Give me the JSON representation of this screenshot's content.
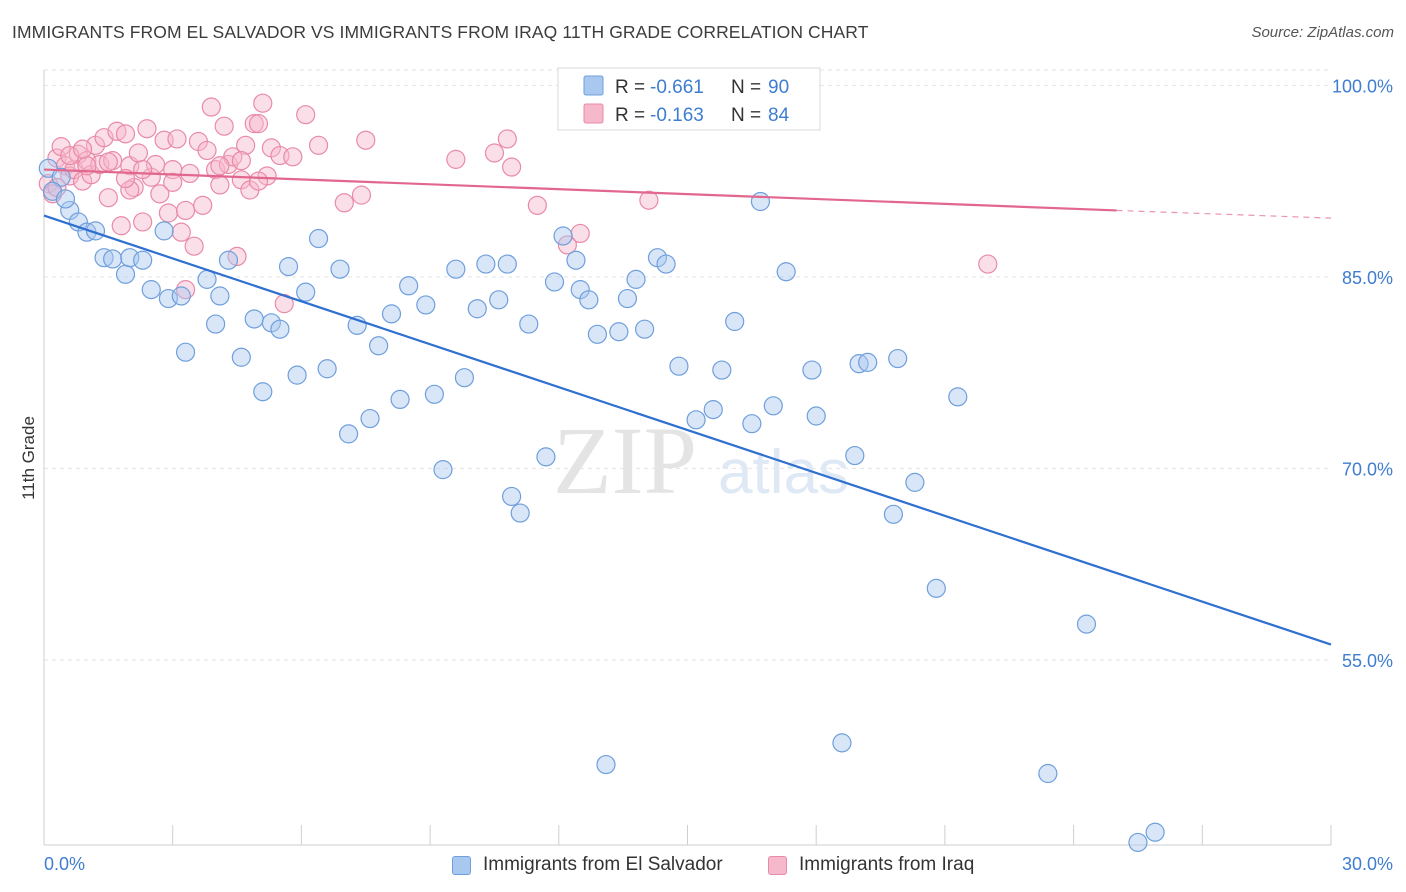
{
  "header": {
    "title": "IMMIGRANTS FROM EL SALVADOR VS IMMIGRANTS FROM IRAQ 11TH GRADE CORRELATION CHART",
    "source": "Source: ZipAtlas.com"
  },
  "watermark": {
    "zip": "ZIP",
    "atlas": "atlas"
  },
  "legend_box": {
    "rows": [
      {
        "r_label": "R =",
        "r_value": "-0.661",
        "n_label": "N =",
        "n_value": "90"
      },
      {
        "r_label": "R =",
        "r_value": "-0.163",
        "n_label": "N =",
        "n_value": "84"
      }
    ]
  },
  "bottom_legend": {
    "series1": "Immigrants from El Salvador",
    "series2": "Immigrants from Iraq"
  },
  "colors": {
    "blue_fill": "#a9c8f0",
    "blue_stroke": "#6f9fdc",
    "blue_line": "#2f6fd0",
    "pink_fill": "#f6b8cb",
    "pink_stroke": "#e98aa8",
    "pink_line": "#e2678f",
    "axis_text": "#3f7dd0",
    "grid": "#e3e3e3"
  },
  "chart_data": {
    "type": "scatter",
    "title": "IMMIGRANTS FROM EL SALVADOR VS IMMIGRANTS FROM IRAQ 11TH GRADE CORRELATION CHART",
    "xlabel": "",
    "ylabel": "11th Grade",
    "xlim": [
      0,
      30
    ],
    "ylim": [
      40.5,
      101.2
    ],
    "x_tick_labels": [
      "0.0%",
      "30.0%"
    ],
    "y_ticks": [
      55,
      70,
      85,
      100
    ],
    "y_tick_labels": [
      "55.0%",
      "70.0%",
      "85.0%",
      "100.0%"
    ],
    "grid": true,
    "series": [
      {
        "name": "Immigrants from El Salvador",
        "color": "#a9c8f0",
        "r": -0.661,
        "n": 90,
        "trendline": {
          "x": [
            0,
            30
          ],
          "y": [
            89.8,
            56.2
          ]
        },
        "points": [
          [
            0.1,
            93.5
          ],
          [
            0.4,
            92.8
          ],
          [
            0.6,
            90.2
          ],
          [
            0.8,
            89.3
          ],
          [
            1.0,
            88.5
          ],
          [
            1.2,
            88.6
          ],
          [
            1.4,
            86.5
          ],
          [
            1.6,
            86.4
          ],
          [
            1.9,
            85.2
          ],
          [
            2.0,
            86.5
          ],
          [
            2.3,
            86.3
          ],
          [
            2.5,
            84.0
          ],
          [
            2.8,
            88.6
          ],
          [
            2.9,
            83.3
          ],
          [
            3.2,
            83.5
          ],
          [
            3.3,
            79.1
          ],
          [
            3.8,
            84.8
          ],
          [
            4.0,
            81.3
          ],
          [
            4.1,
            83.5
          ],
          [
            4.3,
            86.3
          ],
          [
            4.6,
            78.7
          ],
          [
            4.9,
            81.7
          ],
          [
            5.1,
            76.0
          ],
          [
            5.3,
            81.4
          ],
          [
            5.5,
            80.9
          ],
          [
            5.7,
            85.8
          ],
          [
            5.9,
            77.3
          ],
          [
            6.1,
            83.8
          ],
          [
            6.4,
            88.0
          ],
          [
            6.6,
            77.8
          ],
          [
            6.9,
            85.6
          ],
          [
            7.1,
            72.7
          ],
          [
            7.3,
            81.2
          ],
          [
            7.6,
            73.9
          ],
          [
            7.8,
            79.6
          ],
          [
            8.1,
            82.1
          ],
          [
            8.3,
            75.4
          ],
          [
            8.5,
            84.3
          ],
          [
            8.9,
            82.8
          ],
          [
            9.1,
            75.8
          ],
          [
            9.3,
            69.9
          ],
          [
            9.6,
            85.6
          ],
          [
            9.8,
            77.1
          ],
          [
            10.1,
            82.5
          ],
          [
            10.3,
            86.0
          ],
          [
            10.6,
            83.2
          ],
          [
            10.8,
            86.0
          ],
          [
            10.9,
            67.8
          ],
          [
            11.1,
            66.5
          ],
          [
            11.3,
            81.3
          ],
          [
            11.7,
            70.9
          ],
          [
            11.9,
            84.6
          ],
          [
            12.1,
            88.2
          ],
          [
            12.4,
            86.3
          ],
          [
            12.5,
            84.0
          ],
          [
            12.7,
            83.2
          ],
          [
            12.9,
            80.5
          ],
          [
            13.1,
            46.8
          ],
          [
            13.4,
            80.7
          ],
          [
            13.6,
            83.3
          ],
          [
            13.8,
            84.8
          ],
          [
            14.0,
            80.9
          ],
          [
            14.3,
            86.5
          ],
          [
            14.5,
            86.0
          ],
          [
            14.8,
            78.0
          ],
          [
            15.2,
            73.8
          ],
          [
            15.6,
            74.6
          ],
          [
            15.8,
            77.7
          ],
          [
            16.1,
            81.5
          ],
          [
            16.5,
            73.5
          ],
          [
            16.7,
            90.9
          ],
          [
            17.0,
            74.9
          ],
          [
            17.3,
            85.4
          ],
          [
            17.9,
            77.7
          ],
          [
            18.0,
            74.1
          ],
          [
            18.6,
            48.5
          ],
          [
            18.9,
            71.0
          ],
          [
            19.0,
            78.2
          ],
          [
            19.2,
            78.3
          ],
          [
            19.9,
            78.6
          ],
          [
            19.8,
            66.4
          ],
          [
            20.3,
            68.9
          ],
          [
            20.8,
            60.6
          ],
          [
            21.3,
            75.6
          ],
          [
            23.4,
            46.1
          ],
          [
            24.3,
            57.8
          ],
          [
            25.5,
            40.7
          ],
          [
            25.9,
            41.5
          ],
          [
            0.2,
            91.7
          ],
          [
            0.5,
            91.1
          ]
        ]
      },
      {
        "name": "Immigrants from Iraq",
        "color": "#f6b8cb",
        "r": -0.163,
        "n": 84,
        "trendline": {
          "x": [
            0,
            25
          ],
          "y": [
            93.4,
            90.2
          ]
        },
        "trendline_dashed": {
          "x": [
            25,
            30
          ],
          "y": [
            90.2,
            89.6
          ]
        },
        "points": [
          [
            0.1,
            92.3
          ],
          [
            0.2,
            91.5
          ],
          [
            0.3,
            94.3
          ],
          [
            0.4,
            95.2
          ],
          [
            0.5,
            93.7
          ],
          [
            0.6,
            92.9
          ],
          [
            0.7,
            93.4
          ],
          [
            0.8,
            94.6
          ],
          [
            0.9,
            92.5
          ],
          [
            1.0,
            94.1
          ],
          [
            1.1,
            93.0
          ],
          [
            1.2,
            95.3
          ],
          [
            1.3,
            93.8
          ],
          [
            1.4,
            95.9
          ],
          [
            1.5,
            91.2
          ],
          [
            1.6,
            94.1
          ],
          [
            1.7,
            96.4
          ],
          [
            1.8,
            89.0
          ],
          [
            1.9,
            96.2
          ],
          [
            2.0,
            93.7
          ],
          [
            2.1,
            92.0
          ],
          [
            2.2,
            94.7
          ],
          [
            2.3,
            89.3
          ],
          [
            2.4,
            96.6
          ],
          [
            2.5,
            92.8
          ],
          [
            2.6,
            93.8
          ],
          [
            2.7,
            91.5
          ],
          [
            2.8,
            95.7
          ],
          [
            2.9,
            90.0
          ],
          [
            3.0,
            93.4
          ],
          [
            3.1,
            95.8
          ],
          [
            3.2,
            88.5
          ],
          [
            3.3,
            90.2
          ],
          [
            3.4,
            93.1
          ],
          [
            3.5,
            87.4
          ],
          [
            3.6,
            95.6
          ],
          [
            3.7,
            90.6
          ],
          [
            3.8,
            94.9
          ],
          [
            3.9,
            98.3
          ],
          [
            4.0,
            93.4
          ],
          [
            4.1,
            92.2
          ],
          [
            4.2,
            96.8
          ],
          [
            4.3,
            93.8
          ],
          [
            4.4,
            94.4
          ],
          [
            4.5,
            86.6
          ],
          [
            4.6,
            92.6
          ],
          [
            4.7,
            95.3
          ],
          [
            4.8,
            91.8
          ],
          [
            4.9,
            97.0
          ],
          [
            5.0,
            97.0
          ],
          [
            5.1,
            98.6
          ],
          [
            5.2,
            92.9
          ],
          [
            5.3,
            95.1
          ],
          [
            5.5,
            94.5
          ],
          [
            5.6,
            82.9
          ],
          [
            5.8,
            94.4
          ],
          [
            6.1,
            97.7
          ],
          [
            6.4,
            95.3
          ],
          [
            7.0,
            90.8
          ],
          [
            7.4,
            91.4
          ],
          [
            7.5,
            95.7
          ],
          [
            9.6,
            94.2
          ],
          [
            10.5,
            94.7
          ],
          [
            10.8,
            95.8
          ],
          [
            10.9,
            93.6
          ],
          [
            11.5,
            90.6
          ],
          [
            12.2,
            87.5
          ],
          [
            12.5,
            88.4
          ],
          [
            14.1,
            91.0
          ],
          [
            15.0,
            99.6
          ],
          [
            22.0,
            86.0
          ],
          [
            0.6,
            94.5
          ],
          [
            1.0,
            93.7
          ],
          [
            1.5,
            94.0
          ],
          [
            2.3,
            93.4
          ],
          [
            3.3,
            84.0
          ],
          [
            4.1,
            93.7
          ],
          [
            4.6,
            94.1
          ],
          [
            5.0,
            92.5
          ],
          [
            3.0,
            92.4
          ],
          [
            2.0,
            91.8
          ],
          [
            0.3,
            92.0
          ],
          [
            0.9,
            95.0
          ],
          [
            1.9,
            92.7
          ]
        ]
      }
    ]
  }
}
